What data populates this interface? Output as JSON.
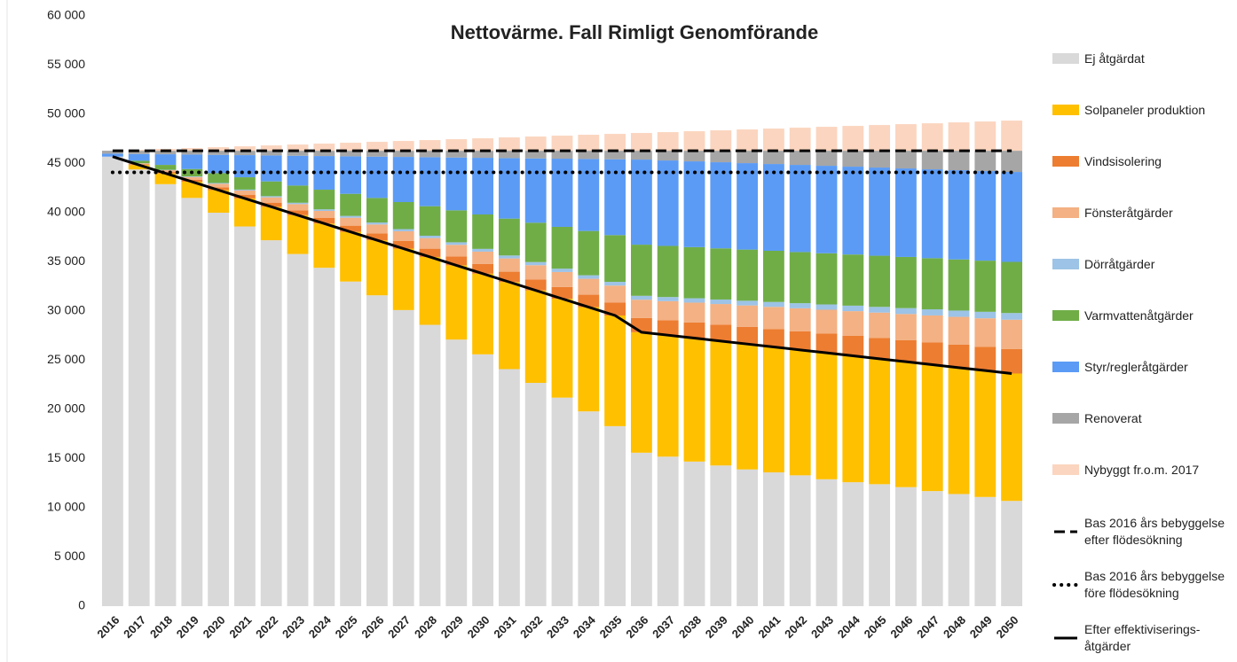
{
  "chart_data": {
    "type": "bar",
    "stacked": true,
    "title": "Nettovärme. Fall Rimligt Genomförande",
    "categories": [
      "2016",
      "2017",
      "2018",
      "2019",
      "2020",
      "2021",
      "2022",
      "2023",
      "2024",
      "2025",
      "2026",
      "2027",
      "2028",
      "2029",
      "2030",
      "2031",
      "2032",
      "2033",
      "2034",
      "2035",
      "2036",
      "2037",
      "2038",
      "2039",
      "2040",
      "2041",
      "2042",
      "2043",
      "2044",
      "2045",
      "2046",
      "2047",
      "2048",
      "2049",
      "2050"
    ],
    "ylim": [
      0,
      60000
    ],
    "yticks": [
      {
        "value": 0,
        "label": "0"
      },
      {
        "value": 5000,
        "label": "5 000"
      },
      {
        "value": 10000,
        "label": "10 000"
      },
      {
        "value": 15000,
        "label": "15 000"
      },
      {
        "value": 20000,
        "label": "20 000"
      },
      {
        "value": 25000,
        "label": "25 000"
      },
      {
        "value": 30000,
        "label": "30 000"
      },
      {
        "value": 35000,
        "label": "35 000"
      },
      {
        "value": 40000,
        "label": "40 000"
      },
      {
        "value": 45000,
        "label": "45 000"
      },
      {
        "value": 50000,
        "label": "50 000"
      },
      {
        "value": 55000,
        "label": "55 000"
      },
      {
        "value": 60000,
        "label": "60 000"
      }
    ],
    "grid": false,
    "legend": "right",
    "series": [
      {
        "name": "Ej åtgärdat",
        "color": "#d9d9d9",
        "values": [
          45700,
          44400,
          42900,
          41500,
          40000,
          38600,
          37200,
          35800,
          34400,
          33000,
          31600,
          30100,
          28600,
          27100,
          25600,
          24100,
          22700,
          21200,
          19800,
          18300,
          15600,
          15200,
          14700,
          14300,
          13900,
          13600,
          13300,
          12900,
          12600,
          12400,
          12100,
          11700,
          11400,
          11100,
          10700
        ]
      },
      {
        "name": "Solpaneler produktion",
        "color": "#ffc000",
        "values": [
          0,
          450,
          1100,
          1650,
          2300,
          2850,
          3400,
          3950,
          4500,
          5050,
          5600,
          6250,
          6900,
          7550,
          8200,
          8850,
          9400,
          10050,
          10600,
          11250,
          12250,
          12350,
          12550,
          12650,
          12750,
          12750,
          12750,
          12850,
          12850,
          12750,
          12750,
          12850,
          12850,
          12850,
          12950
        ]
      },
      {
        "name": "Vindsisolering",
        "color": "#ed7d31",
        "values": [
          0,
          70,
          140,
          210,
          280,
          350,
          420,
          490,
          560,
          630,
          700,
          770,
          840,
          910,
          980,
          1050,
          1120,
          1190,
          1260,
          1330,
          1450,
          1525,
          1600,
          1675,
          1750,
          1825,
          1900,
          1975,
          2050,
          2125,
          2200,
          2275,
          2350,
          2425,
          2500
        ]
      },
      {
        "name": "Fönsteråtgärder",
        "color": "#f4b183",
        "values": [
          0,
          90,
          180,
          270,
          360,
          450,
          540,
          630,
          720,
          810,
          900,
          990,
          1080,
          1170,
          1260,
          1350,
          1440,
          1530,
          1620,
          1710,
          1850,
          1930,
          2010,
          2090,
          2170,
          2250,
          2330,
          2410,
          2490,
          2570,
          2650,
          2730,
          2810,
          2890,
          2970
        ]
      },
      {
        "name": "Dörråtgärder",
        "color": "#9dc3e6",
        "values": [
          0,
          20,
          40,
          60,
          80,
          100,
          120,
          140,
          160,
          180,
          200,
          220,
          240,
          260,
          280,
          300,
          320,
          340,
          360,
          380,
          400,
          420,
          440,
          460,
          480,
          500,
          520,
          540,
          560,
          580,
          600,
          620,
          640,
          660,
          680
        ]
      },
      {
        "name": "Varmvattenåtgärder",
        "color": "#70ad47",
        "values": [
          0,
          250,
          500,
          750,
          1000,
          1250,
          1500,
          1750,
          2000,
          2250,
          2500,
          2750,
          3000,
          3250,
          3500,
          3750,
          4000,
          4250,
          4500,
          4750,
          5200,
          5200,
          5200,
          5200,
          5200,
          5200,
          5200,
          5200,
          5200,
          5200,
          5200,
          5200,
          5200,
          5200,
          5200
        ]
      },
      {
        "name": "Styr/regleråtgärder",
        "color": "#5b9bf5",
        "values": [
          300,
          690,
          1080,
          1470,
          1860,
          2250,
          2640,
          3030,
          3420,
          3810,
          4200,
          4590,
          4980,
          5370,
          5760,
          6150,
          6540,
          6930,
          7320,
          7710,
          8650,
          8685,
          8720,
          8755,
          8790,
          8825,
          8860,
          8895,
          8930,
          8965,
          9000,
          9035,
          9070,
          9105,
          9140
        ]
      },
      {
        "name": "Renoverat",
        "color": "#a6a6a6",
        "values": [
          300,
          330,
          360,
          390,
          420,
          450,
          480,
          510,
          540,
          570,
          600,
          630,
          660,
          690,
          720,
          750,
          780,
          810,
          840,
          870,
          900,
          990,
          1080,
          1170,
          1260,
          1350,
          1440,
          1530,
          1620,
          1710,
          1800,
          1890,
          1980,
          2070,
          2160
        ]
      },
      {
        "name": "Nybyggt fr.o.m. 2017",
        "color": "#fbd5bf",
        "values": [
          0,
          90,
          180,
          270,
          360,
          450,
          540,
          630,
          720,
          810,
          900,
          990,
          1080,
          1170,
          1260,
          1350,
          1440,
          1530,
          1620,
          1710,
          1800,
          1890,
          1980,
          2070,
          2160,
          2250,
          2340,
          2430,
          2520,
          2610,
          2700,
          2790,
          2880,
          2970,
          3060
        ]
      },
      {
        "name": "Bas 2016 års bebyggelse efter flödesökning",
        "type": "line",
        "dash": "dashed",
        "color": "#000000",
        "values": [
          46300,
          46300,
          46300,
          46300,
          46300,
          46300,
          46300,
          46300,
          46300,
          46300,
          46300,
          46300,
          46300,
          46300,
          46300,
          46300,
          46300,
          46300,
          46300,
          46300,
          46300,
          46300,
          46300,
          46300,
          46300,
          46300,
          46300,
          46300,
          46300,
          46300,
          46300,
          46300,
          46300,
          46300,
          46300
        ]
      },
      {
        "name": "Bas 2016 års bebyggelse före flödesökning",
        "type": "line",
        "dash": "dotted",
        "color": "#000000",
        "values": [
          44100,
          44100,
          44100,
          44100,
          44100,
          44100,
          44100,
          44100,
          44100,
          44100,
          44100,
          44100,
          44100,
          44100,
          44100,
          44100,
          44100,
          44100,
          44100,
          44100,
          44100,
          44100,
          44100,
          44100,
          44100,
          44100,
          44100,
          44100,
          44100,
          44100,
          44100,
          44100,
          44100,
          44100,
          44100
        ]
      },
      {
        "name": "Efter effektiviserings-åtgärder",
        "type": "line",
        "dash": "solid",
        "color": "#000000",
        "values": [
          45700,
          44850,
          44000,
          43150,
          42300,
          41450,
          40600,
          39750,
          38900,
          38050,
          37200,
          36350,
          35500,
          34650,
          33800,
          32950,
          32100,
          31250,
          30400,
          29550,
          27850,
          27550,
          27250,
          26950,
          26650,
          26350,
          26050,
          25750,
          25450,
          25150,
          24850,
          24550,
          24250,
          23950,
          23650
        ]
      }
    ]
  }
}
